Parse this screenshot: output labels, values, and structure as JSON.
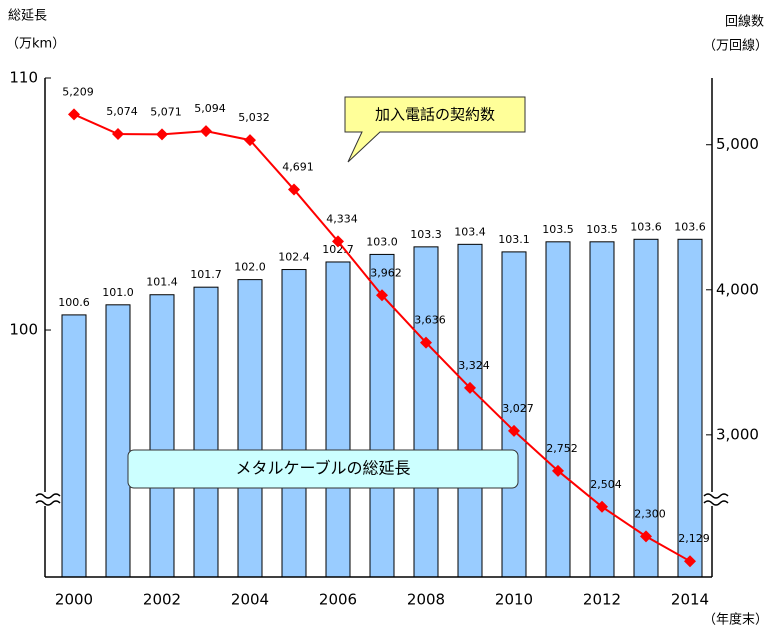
{
  "chart_data": {
    "type": "bar",
    "ylabel": "総延長",
    "yunit": "（万km）",
    "y2label": "回線数",
    "y2unit": "（万回線）",
    "xlabel": "（年度末）",
    "categories": [
      "2000",
      null,
      "2002",
      null,
      "2004",
      null,
      "2006",
      null,
      "2008",
      null,
      "2010",
      null,
      "2012",
      null,
      "2014"
    ],
    "series": [
      {
        "name": "メタルケーブルの総延長",
        "type": "bar",
        "color": "#99ccff",
        "values": [
          100.6,
          101.0,
          101.4,
          101.7,
          102.0,
          102.4,
          102.7,
          103.0,
          103.3,
          103.4,
          103.1,
          103.5,
          103.5,
          103.6,
          103.6
        ],
        "value_labels": [
          "100.6",
          "101.0",
          "101.4",
          "101.7",
          "102.0",
          "102.4",
          "102.7",
          "103.0",
          "103.3",
          "103.4",
          "103.1",
          "103.5",
          "103.5",
          "103.6",
          "103.6"
        ]
      },
      {
        "name": "加入電話の契約数",
        "type": "line",
        "axis": "y2",
        "color": "#ff0000",
        "values": [
          5209,
          5074,
          5071,
          5094,
          5032,
          4691,
          4334,
          3962,
          3636,
          3324,
          3027,
          2752,
          2504,
          2300,
          2129
        ],
        "value_labels": [
          "5,209",
          "5,074",
          "5,071",
          "5,094",
          "5,032",
          "4,691",
          "4,334",
          "3,962",
          "3,636",
          "3,324",
          "3,027",
          "2,752",
          "2,504",
          "2,300",
          "2,129"
        ]
      }
    ],
    "ylim": [
      90.2,
      110
    ],
    "yticks": [
      100,
      110
    ],
    "y2lim": [
      2020,
      5460
    ],
    "y2ticks": [
      {
        "value": 3000,
        "label": "3,000"
      },
      {
        "value": 4000,
        "label": "4,000"
      },
      {
        "value": 5000,
        "label": "5,000"
      }
    ],
    "grid": false
  }
}
